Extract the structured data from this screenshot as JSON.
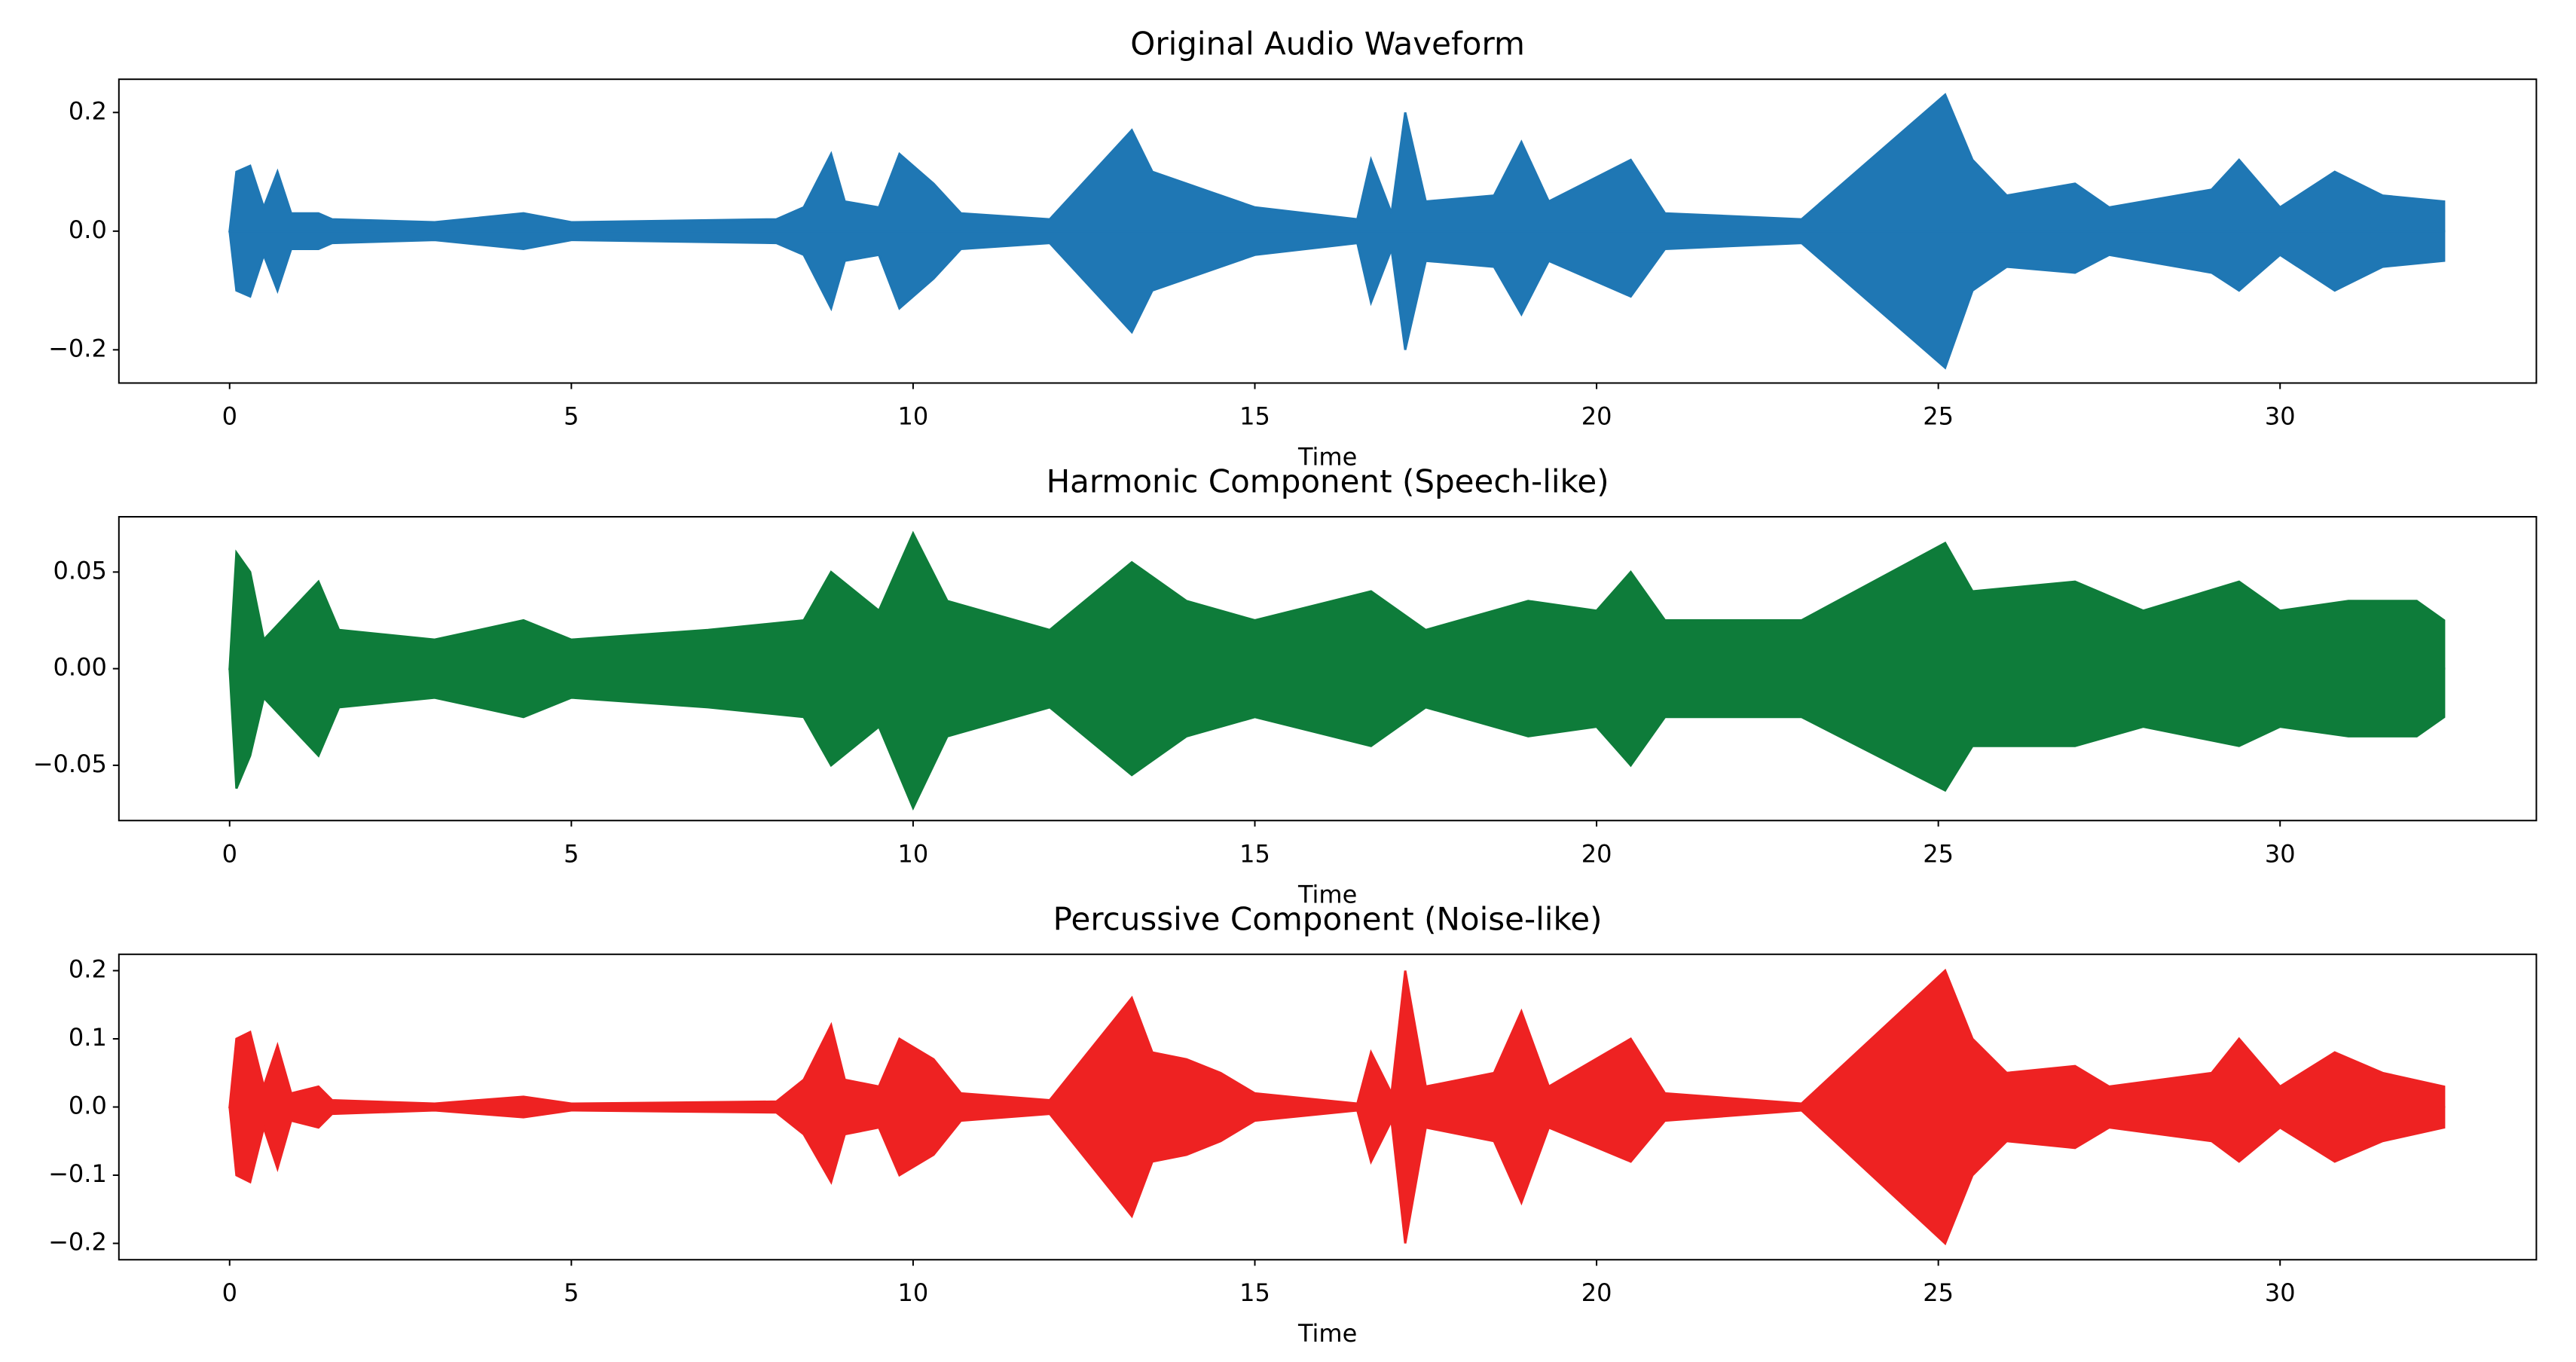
{
  "chart_data": [
    {
      "type": "waveform",
      "title": "Original Audio Waveform",
      "x_label": "Time",
      "color": "#1f77b4",
      "x": [
        0,
        0.1,
        0.3,
        0.5,
        0.7,
        0.9,
        1.3,
        1.5,
        3,
        4.3,
        5,
        8,
        8.4,
        8.8,
        9.0,
        9.5,
        9.8,
        10.3,
        10.7,
        12,
        13.2,
        13.5,
        14,
        14.5,
        15,
        16.5,
        16.7,
        17.0,
        17.2,
        17.5,
        18.5,
        18.9,
        19.3,
        20.5,
        21,
        23,
        25.1,
        25.5,
        26,
        27,
        27.5,
        29,
        29.4,
        30,
        30.8,
        31.5,
        32.4
      ],
      "upper": [
        0,
        0.1,
        0.11,
        0.04,
        0.1,
        0.03,
        0.03,
        0.02,
        0.015,
        0.03,
        0.015,
        0.02,
        0.04,
        0.13,
        0.05,
        0.04,
        0.13,
        0.08,
        0.03,
        0.02,
        0.17,
        0.1,
        0.08,
        0.06,
        0.04,
        0.02,
        0.12,
        0.03,
        0.2,
        0.05,
        0.06,
        0.15,
        0.05,
        0.12,
        0.03,
        0.02,
        0.23,
        0.12,
        0.06,
        0.08,
        0.04,
        0.07,
        0.12,
        0.04,
        0.1,
        0.06,
        0.05
      ],
      "lower": [
        0,
        -0.1,
        -0.11,
        -0.04,
        -0.1,
        -0.03,
        -0.03,
        -0.02,
        -0.015,
        -0.03,
        -0.015,
        -0.02,
        -0.04,
        -0.13,
        -0.05,
        -0.04,
        -0.13,
        -0.08,
        -0.03,
        -0.02,
        -0.17,
        -0.1,
        -0.08,
        -0.06,
        -0.04,
        -0.02,
        -0.12,
        -0.03,
        -0.2,
        -0.05,
        -0.06,
        -0.14,
        -0.05,
        -0.11,
        -0.03,
        -0.02,
        -0.23,
        -0.1,
        -0.06,
        -0.07,
        -0.04,
        -0.07,
        -0.1,
        -0.04,
        -0.1,
        -0.06,
        -0.05
      ],
      "xlim": [
        -1.62,
        33.75
      ],
      "ylim": [
        -0.256,
        0.256
      ],
      "xticks": [
        0,
        5,
        10,
        15,
        20,
        25,
        30
      ],
      "yticks": [
        {
          "value": -0.2,
          "label": "−0.2"
        },
        {
          "value": 0,
          "label": "0.0"
        },
        0.2
      ]
    },
    {
      "type": "waveform",
      "title": "Harmonic Component (Speech-like)",
      "x_label": "Time",
      "color": "#0e7c3a",
      "x": [
        0,
        0.1,
        0.3,
        0.5,
        1.3,
        1.6,
        3,
        4.3,
        5,
        7,
        8.4,
        8.8,
        9.5,
        10.0,
        10.5,
        12,
        13.2,
        14,
        15,
        16.7,
        17.5,
        18.5,
        19,
        20,
        20.5,
        21,
        23,
        25.1,
        25.5,
        27,
        28,
        29.4,
        30,
        31,
        32,
        32.4
      ],
      "upper": [
        0,
        0.06,
        0.05,
        0.015,
        0.045,
        0.02,
        0.015,
        0.025,
        0.015,
        0.02,
        0.025,
        0.05,
        0.03,
        0.07,
        0.035,
        0.02,
        0.055,
        0.035,
        0.025,
        0.04,
        0.02,
        0.03,
        0.035,
        0.03,
        0.05,
        0.025,
        0.025,
        0.065,
        0.04,
        0.045,
        0.03,
        0.045,
        0.03,
        0.035,
        0.035,
        0.025
      ],
      "lower": [
        0,
        -0.062,
        -0.045,
        -0.015,
        -0.045,
        -0.02,
        -0.015,
        -0.025,
        -0.015,
        -0.02,
        -0.025,
        -0.05,
        -0.03,
        -0.072,
        -0.035,
        -0.02,
        -0.055,
        -0.035,
        -0.025,
        -0.04,
        -0.02,
        -0.03,
        -0.035,
        -0.03,
        -0.05,
        -0.025,
        -0.025,
        -0.063,
        -0.04,
        -0.04,
        -0.03,
        -0.04,
        -0.03,
        -0.035,
        -0.035,
        -0.025
      ],
      "xlim": [
        -1.62,
        33.75
      ],
      "ylim": [
        -0.0786,
        0.0786
      ],
      "xticks": [
        0,
        5,
        10,
        15,
        20,
        25,
        30
      ],
      "yticks": [
        {
          "value": -0.05,
          "label": "−0.05"
        },
        {
          "value": 0,
          "label": "0.00"
        },
        0.05
      ]
    },
    {
      "type": "waveform",
      "title": "Percussive Component (Noise-like)",
      "x_label": "Time",
      "color": "#ee2222",
      "x": [
        0,
        0.1,
        0.3,
        0.5,
        0.7,
        0.9,
        1.3,
        1.5,
        3,
        4.3,
        5,
        8,
        8.4,
        8.8,
        9.0,
        9.5,
        9.8,
        10.3,
        10.7,
        12,
        13.2,
        13.5,
        14,
        14.5,
        15,
        16.5,
        16.7,
        17.0,
        17.2,
        17.5,
        18.5,
        18.9,
        19.3,
        20.5,
        21,
        23,
        25.1,
        25.5,
        26,
        27,
        27.5,
        29,
        29.4,
        30,
        30.8,
        31.5,
        32.4
      ],
      "upper": [
        0,
        0.1,
        0.11,
        0.03,
        0.09,
        0.02,
        0.03,
        0.01,
        0.005,
        0.015,
        0.005,
        0.008,
        0.04,
        0.12,
        0.04,
        0.03,
        0.1,
        0.07,
        0.02,
        0.01,
        0.16,
        0.08,
        0.07,
        0.05,
        0.02,
        0.005,
        0.08,
        0.02,
        0.2,
        0.03,
        0.05,
        0.14,
        0.03,
        0.1,
        0.02,
        0.005,
        0.2,
        0.1,
        0.05,
        0.06,
        0.03,
        0.05,
        0.1,
        0.03,
        0.08,
        0.05,
        0.03
      ],
      "lower": [
        0,
        -0.1,
        -0.11,
        -0.03,
        -0.09,
        -0.02,
        -0.03,
        -0.01,
        -0.005,
        -0.015,
        -0.005,
        -0.008,
        -0.04,
        -0.11,
        -0.04,
        -0.03,
        -0.1,
        -0.07,
        -0.02,
        -0.01,
        -0.16,
        -0.08,
        -0.07,
        -0.05,
        -0.02,
        -0.005,
        -0.08,
        -0.02,
        -0.2,
        -0.03,
        -0.05,
        -0.14,
        -0.03,
        -0.08,
        -0.02,
        -0.005,
        -0.2,
        -0.1,
        -0.05,
        -0.06,
        -0.03,
        -0.05,
        -0.08,
        -0.03,
        -0.08,
        -0.05,
        -0.03
      ],
      "xlim": [
        -1.62,
        33.75
      ],
      "ylim": [
        -0.224,
        0.224
      ],
      "xticks": [
        0,
        5,
        10,
        15,
        20,
        25,
        30
      ],
      "yticks": [
        {
          "value": -0.2,
          "label": "−0.2"
        },
        {
          "value": -0.1,
          "label": "−0.1"
        },
        {
          "value": 0,
          "label": "0.0"
        },
        0.1,
        0.2
      ]
    }
  ]
}
